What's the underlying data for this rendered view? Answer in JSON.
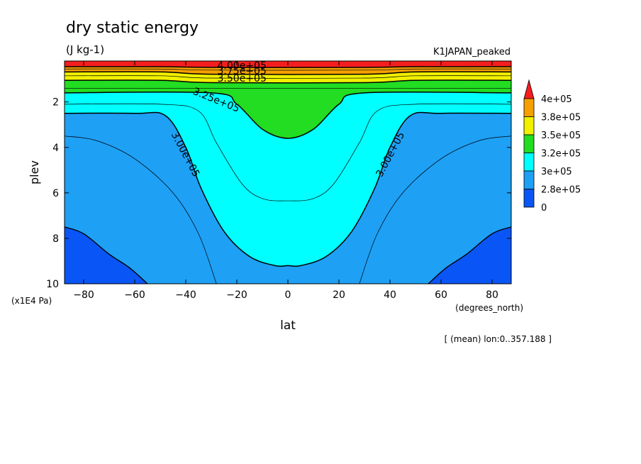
{
  "chart_data": {
    "type": "contour",
    "title": "dry static energy",
    "units": "(J kg-1)",
    "run_label": "K1JAPAN_peaked",
    "xlabel": "lat",
    "x_units": "(degrees_north)",
    "ylabel": "plev",
    "y_units": "(x1E4 Pa)",
    "note": "[ (mean) lon:0..357.188 ]",
    "xlim": [
      -87.5,
      87.5
    ],
    "ylim": [
      10,
      0.2
    ],
    "x_ticks": [
      -80,
      -60,
      -40,
      -20,
      0,
      20,
      40,
      60,
      80
    ],
    "y_ticks": [
      2,
      4,
      6,
      8,
      10
    ],
    "colors": {
      "band_below_275k": "#0a55f5",
      "band_275k_300k": "#1ea0f5",
      "band_300k_325k": "#00ffff",
      "band_325k_350k": "#22dd22",
      "band_350k_375k": "#f0f000",
      "band_375k_400k": "#f5a000",
      "band_above_400k": "#f51e1e"
    },
    "colorbar": {
      "labels": [
        "4e+05",
        "3.8e+05",
        "3.5e+05",
        "3.2e+05",
        "3e+05",
        "2.8e+05",
        "0"
      ]
    },
    "contour_labels": [
      "4.00e+05",
      "3.75e+05",
      "3.50e+05",
      "3.25e+05",
      "3.00e+05",
      "3.00e+05"
    ],
    "contours": [
      {
        "level": 287500,
        "x": [
          -87.5,
          -75,
          -60,
          -45,
          -35,
          -28,
          -28,
          -35,
          -45,
          -60,
          -75,
          -87.5
        ],
        "y": [
          3.5,
          3.7,
          4.5,
          6.0,
          7.8,
          10.0,
          10.0,
          7.8,
          6.0,
          4.5,
          3.7,
          3.5
        ]
      },
      {
        "level": 300000,
        "x": [
          -87.5,
          -60,
          -48,
          -40,
          -34,
          -25,
          -15,
          -5,
          0,
          5,
          15,
          25,
          34,
          40,
          48,
          60,
          87.5
        ],
        "y": [
          2.5,
          2.5,
          2.6,
          4.0,
          5.8,
          7.7,
          8.8,
          9.2,
          9.2,
          9.2,
          8.8,
          7.7,
          5.8,
          4.0,
          2.6,
          2.5,
          2.5
        ]
      },
      {
        "level": 312500,
        "x": [
          -87.5,
          -50,
          -35,
          -28,
          -18,
          -10,
          0,
          10,
          18,
          28,
          35,
          50,
          87.5
        ],
        "y": [
          2.1,
          2.1,
          2.4,
          3.8,
          5.6,
          6.25,
          6.35,
          6.25,
          5.6,
          3.8,
          2.4,
          2.1,
          2.1
        ]
      },
      {
        "level": 325000,
        "x": [
          -87.5,
          -30,
          -20,
          -10,
          0,
          10,
          20,
          30,
          87.5
        ],
        "y": [
          1.6,
          1.6,
          2.1,
          3.2,
          3.6,
          3.2,
          2.1,
          1.6,
          1.6
        ]
      },
      {
        "level": 337500,
        "x": [
          -87.5,
          87.5
        ],
        "y": [
          1.4,
          1.4
        ]
      },
      {
        "level": 350000,
        "x": [
          -87.5,
          -50,
          -30,
          30,
          50,
          87.5
        ],
        "y": [
          1.05,
          1.05,
          1.15,
          1.15,
          1.05,
          1.05
        ]
      },
      {
        "level": 362500,
        "x": [
          -87.5,
          -50,
          -30,
          30,
          50,
          87.5
        ],
        "y": [
          0.85,
          0.85,
          0.95,
          0.95,
          0.85,
          0.85
        ]
      },
      {
        "level": 375000,
        "x": [
          -87.5,
          -50,
          -30,
          30,
          50,
          87.5
        ],
        "y": [
          0.68,
          0.68,
          0.78,
          0.78,
          0.68,
          0.68
        ]
      },
      {
        "level": 387500,
        "x": [
          -87.5,
          -50,
          -30,
          30,
          50,
          87.5
        ],
        "y": [
          0.55,
          0.55,
          0.6,
          0.6,
          0.55,
          0.55
        ]
      },
      {
        "level": 400000,
        "x": [
          -87.5,
          -50,
          -30,
          30,
          50,
          87.5
        ],
        "y": [
          0.45,
          0.45,
          0.48,
          0.48,
          0.45,
          0.45
        ]
      }
    ],
    "regions": [
      {
        "band": "band_below_275k",
        "x": [
          -87.5,
          -80,
          -70,
          -62,
          -55,
          -87.5
        ],
        "y": [
          7.5,
          7.8,
          8.7,
          9.3,
          10.0,
          10.0
        ]
      },
      {
        "band": "band_below_275k",
        "x": [
          87.5,
          80,
          70,
          62,
          55,
          87.5
        ],
        "y": [
          7.5,
          7.8,
          8.7,
          9.3,
          10.0,
          10.0
        ]
      }
    ]
  }
}
